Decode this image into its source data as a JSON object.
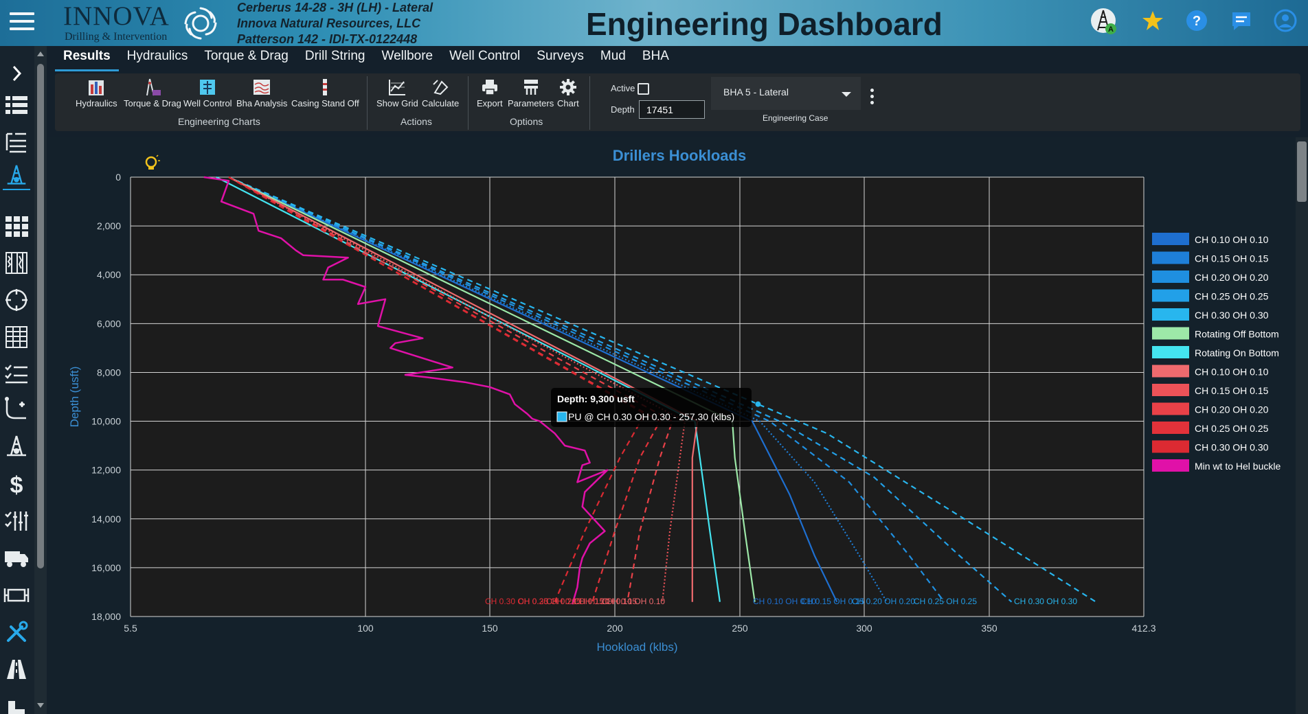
{
  "header": {
    "brand_name": "INNOVA",
    "brand_tagline": "Drilling & Intervention",
    "well_name": "Cerberus 14-28 - 3H (LH) - Lateral",
    "company": "Innova Natural Resources, LLC",
    "rig": "Patterson 142 - IDI-TX-0122448",
    "title": "Engineering Dashboard",
    "rig_badge": "A",
    "icons": [
      "rig-icon",
      "star-icon",
      "help-icon",
      "chat-icon",
      "user-icon"
    ]
  },
  "tabs": [
    {
      "label": "Results",
      "active": true
    },
    {
      "label": "Hydraulics"
    },
    {
      "label": "Torque & Drag"
    },
    {
      "label": "Drill String"
    },
    {
      "label": "Wellbore"
    },
    {
      "label": "Well Control"
    },
    {
      "label": "Surveys"
    },
    {
      "label": "Mud"
    },
    {
      "label": "BHA"
    }
  ],
  "ribbon": {
    "engineering_charts": {
      "label": "Engineering Charts",
      "buttons": [
        "Hydraulics",
        "Torque & Drag",
        "Well Control",
        "Bha Analysis",
        "Casing Stand Off"
      ]
    },
    "actions": {
      "label": "Actions",
      "buttons": [
        "Show Grid",
        "Calculate"
      ]
    },
    "options": {
      "label": "Options",
      "buttons": [
        "Export",
        "Parameters",
        "Chart"
      ]
    },
    "active_label": "Active",
    "active_checked": false,
    "depth_label": "Depth",
    "depth_value": "17451",
    "engineering_case": {
      "label": "Engineering Case",
      "selected": "BHA 5 - Lateral"
    }
  },
  "chart_data": {
    "type": "line",
    "title": "Drillers Hookloads",
    "xlabel": "Hookload (klbs)",
    "ylabel": "Depth (usft)",
    "xlim": [
      5.5,
      412.3
    ],
    "ylim": [
      18000,
      0
    ],
    "x_ticks": [
      "5.5",
      "100",
      "150",
      "200",
      "250",
      "300",
      "350",
      "412.3"
    ],
    "y_ticks": [
      "0",
      "2,000",
      "4,000",
      "6,000",
      "8,000",
      "10,000",
      "12,000",
      "14,000",
      "16,000",
      "18,000"
    ],
    "grid": true,
    "legend_position": "right",
    "colors": {
      "ch010_pu": "#1e6fd0",
      "ch015_pu": "#1e7fd8",
      "ch020_pu": "#1f8fe0",
      "ch025_pu": "#22a0e8",
      "ch030_pu": "#28b6ee",
      "rotating_off": "#9de8a8",
      "rotating_on": "#44e4f0",
      "ch010_so": "#ef6a6e",
      "ch015_so": "#ec5258",
      "ch020_so": "#e84148",
      "ch025_so": "#e2323a",
      "ch030_so": "#dc2a32",
      "buckle": "#e011a8"
    },
    "legend": [
      "CH 0.10 OH 0.10",
      "CH 0.15 OH 0.15",
      "CH 0.20 OH 0.20",
      "CH 0.25 OH 0.25",
      "CH 0.30 OH 0.30",
      "Rotating Off Bottom",
      "Rotating On Bottom",
      "CH 0.10 OH 0.10",
      "CH 0.15 OH 0.15",
      "CH 0.20 OH 0.20",
      "CH 0.25 OH 0.25",
      "CH 0.30 OH 0.30",
      "Min wt to Hel buckle"
    ],
    "series": [
      {
        "name": "CH 0.10 OH 0.10",
        "key": "ch010_pu",
        "dash": "solid",
        "x": [
          45,
          255,
          270,
          280,
          289
        ],
        "y": [
          0,
          10000,
          13000,
          15500,
          17400
        ]
      },
      {
        "name": "CH 0.15 OH 0.15",
        "key": "ch015_pu",
        "dash": "dotted",
        "x": [
          45,
          258,
          280,
          298,
          309
        ],
        "y": [
          0,
          10000,
          12500,
          15500,
          17400
        ]
      },
      {
        "name": "CH 0.20 OH 0.20",
        "key": "ch020_pu",
        "dash": "dashed",
        "x": [
          45,
          262,
          294,
          318,
          332
        ],
        "y": [
          0,
          10000,
          12500,
          15500,
          17400
        ]
      },
      {
        "name": "CH 0.25 OH 0.25",
        "key": "ch025_pu",
        "dash": "dashed",
        "x": [
          45,
          266,
          304,
          338,
          359
        ],
        "y": [
          0,
          10000,
          12300,
          15500,
          17400
        ]
      },
      {
        "name": "CH 0.30 OH 0.30",
        "key": "ch030_pu",
        "dash": "dashed",
        "x": [
          45,
          257.3,
          285,
          340,
          393
        ],
        "y": [
          0,
          9300,
          10500,
          14000,
          17400
        ]
      },
      {
        "name": "Rotating Off Bottom",
        "key": "rotating_off",
        "dash": "solid",
        "x": [
          45,
          247,
          248,
          252,
          256
        ],
        "y": [
          0,
          10000,
          11500,
          14500,
          17400
        ]
      },
      {
        "name": "Rotating On Bottom",
        "key": "rotating_on",
        "dash": "solid",
        "x": [
          40,
          232,
          234,
          238,
          242
        ],
        "y": [
          0,
          10000,
          11500,
          14500,
          17400
        ]
      },
      {
        "name": "CH 0.10 OH 0.10",
        "key": "ch010_so",
        "dash": "solid",
        "x": [
          45,
          233,
          231,
          231,
          231
        ],
        "y": [
          0,
          10000,
          11500,
          14500,
          17400
        ]
      },
      {
        "name": "CH 0.15 OH 0.15",
        "key": "ch015_so",
        "dash": "dotted",
        "x": [
          45,
          228,
          226,
          222,
          219
        ],
        "y": [
          0,
          10000,
          11500,
          14500,
          17400
        ]
      },
      {
        "name": "CH 0.20 OH 0.20",
        "key": "ch020_so",
        "dash": "dashed",
        "x": [
          45,
          223,
          218,
          210,
          205
        ],
        "y": [
          0,
          10000,
          11500,
          14500,
          17400
        ]
      },
      {
        "name": "CH 0.25 OH 0.25",
        "key": "ch025_so",
        "dash": "dashed",
        "x": [
          45,
          218,
          210,
          200,
          191
        ],
        "y": [
          0,
          10000,
          11500,
          14500,
          17400
        ]
      },
      {
        "name": "CH 0.30 OH 0.30",
        "key": "ch030_so",
        "dash": "dashed",
        "x": [
          45,
          212,
          202,
          188,
          176
        ],
        "y": [
          0,
          9700,
          11500,
          14500,
          17400
        ]
      },
      {
        "name": "Min wt to Hel buckle",
        "key": "buckle",
        "dash": "solid",
        "x": [
          35,
          45,
          42,
          55,
          57,
          66,
          72,
          75,
          93,
          85,
          83,
          91,
          100,
          97,
          108,
          105,
          123,
          112,
          110,
          135,
          116,
          125,
          140,
          150,
          158,
          160,
          165,
          167,
          170,
          176,
          180,
          188,
          190,
          187,
          185,
          197,
          188,
          187,
          196,
          190,
          187,
          186,
          185,
          183
        ],
        "y": [
          0,
          150,
          1000,
          1500,
          2200,
          2500,
          3000,
          3200,
          3300,
          3700,
          4200,
          4200,
          4500,
          5200,
          5000,
          6100,
          6600,
          6800,
          7000,
          7800,
          8100,
          8200,
          8400,
          8600,
          8900,
          9300,
          9700,
          9900,
          10000,
          10500,
          11000,
          11200,
          11700,
          11800,
          12500,
          12000,
          12900,
          13500,
          14500,
          15000,
          15600,
          16000,
          16800,
          17500
        ]
      }
    ],
    "end_labels": {
      "slackoff": [
        "CH 0.30 OH 0.30",
        "CH 0.25 OH 0.25",
        "CH 0.20 OH 0.20",
        "CH 0.15 OH 0.15",
        "CH 0.10 OH 0.10"
      ],
      "pickup": [
        "CH 0.10 OH 0.10",
        "CH 0.15 OH 0.15",
        "CH 0.20 OH 0.20",
        "CH 0.25 OH 0.25",
        "CH 0.30 OH 0.30"
      ]
    },
    "tooltip": {
      "title": "Depth: 9,300 usft",
      "text": "PU @ CH 0.30 OH 0.30 - 257.30 (klbs)",
      "depth": 9300,
      "value": 257.3
    }
  }
}
